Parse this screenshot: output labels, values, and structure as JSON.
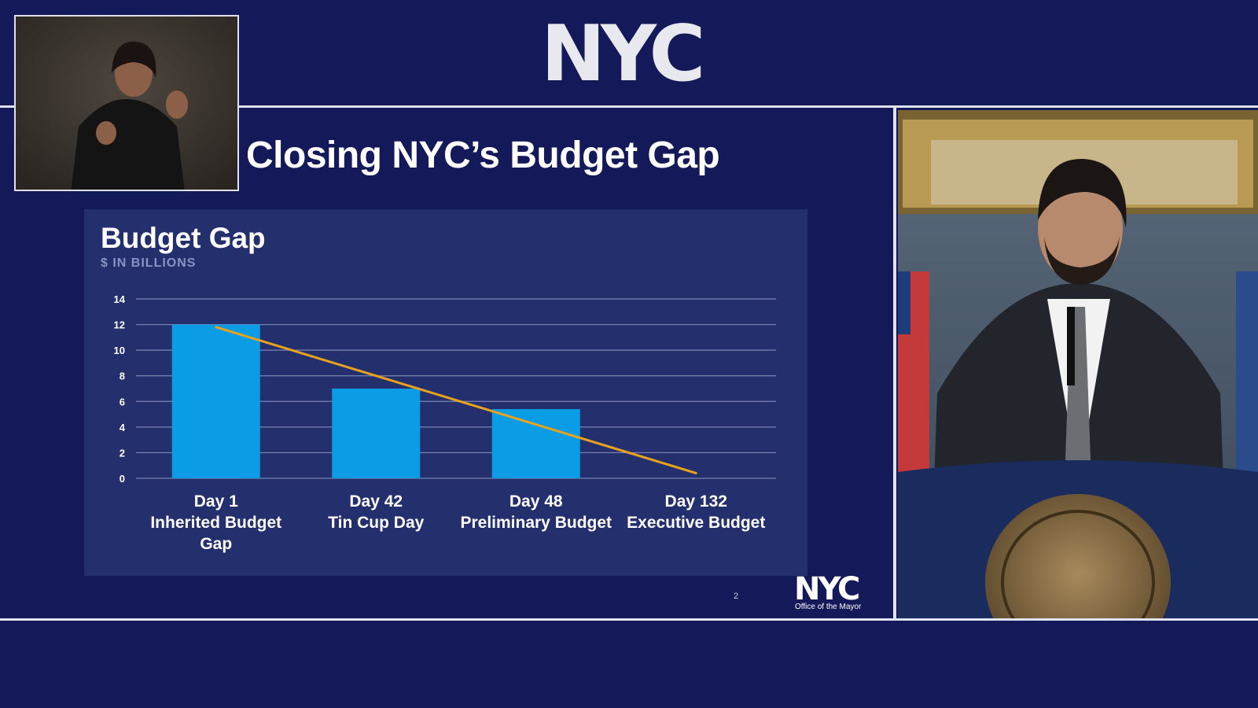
{
  "header": {
    "logo_text": "NYC"
  },
  "slide": {
    "title": "Closing NYC’s Budget Gap",
    "page_number": "2"
  },
  "footer_logo": {
    "text": "NYC",
    "subtext": "Office of the Mayor"
  },
  "colors": {
    "background": "#14195a",
    "panel": "#24306d",
    "bar": "#0b9ce6",
    "trend": "#e8a21e",
    "grid": "#7c84b4"
  },
  "chart_data": {
    "type": "bar",
    "title": "Budget Gap",
    "subtitle": "$ IN BILLIONS",
    "categories": [
      [
        "Day 1",
        "Inherited Budget",
        "Gap"
      ],
      [
        "Day 42",
        "Tin Cup Day"
      ],
      [
        "Day 48",
        "Preliminary Budget"
      ],
      [
        "Day 132",
        "Executive Budget"
      ]
    ],
    "values": [
      12,
      7,
      5.4,
      null
    ],
    "trendline": {
      "type": "line",
      "points": [
        [
          0,
          11.8
        ],
        [
          3,
          0.4
        ]
      ]
    },
    "ylim": [
      0,
      14
    ],
    "yticks": [
      0,
      2,
      4,
      6,
      8,
      10,
      12,
      14
    ],
    "grid": true,
    "legend": "none"
  }
}
